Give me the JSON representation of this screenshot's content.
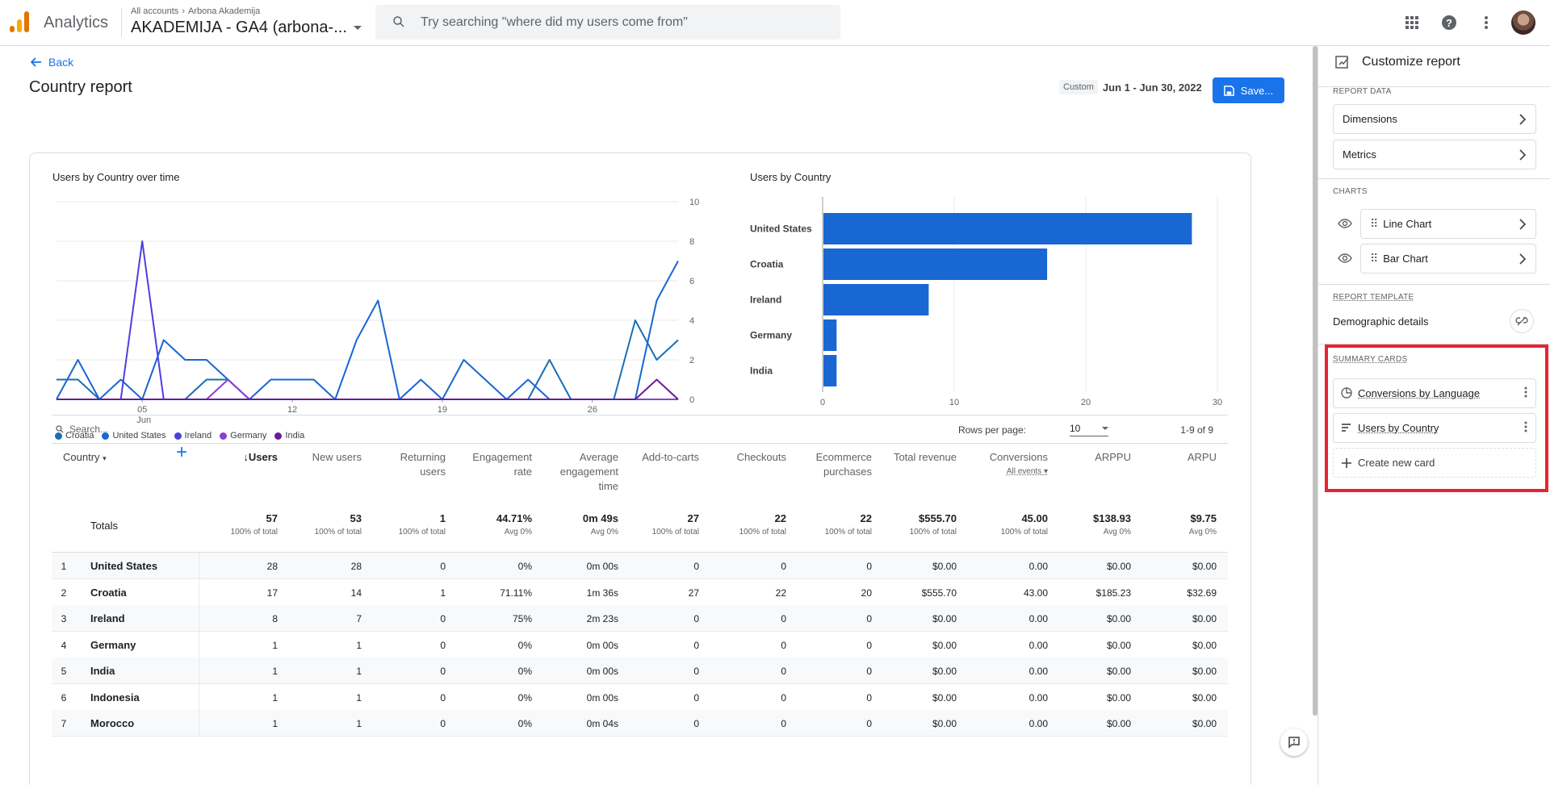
{
  "header": {
    "app_name": "Analytics",
    "breadcrumb": [
      "All accounts",
      "Arbona Akademija"
    ],
    "property_name": "AKADEMIJA - GA4 (arbona-...",
    "search_placeholder": "Try searching \"where did my users come from\""
  },
  "report": {
    "back_label": "Back",
    "title": "Country report",
    "date_chip": "Custom",
    "date_range": "Jun 1 - Jun 30, 2022",
    "save_label": "Save..."
  },
  "line_chart": {
    "title": "Users by Country over time",
    "y_ticks": [
      "10",
      "8",
      "6",
      "4",
      "2",
      "0"
    ],
    "x_ticks": [
      "05",
      "12",
      "19",
      "26"
    ],
    "x_month": "Jun",
    "legend": [
      {
        "name": "Croatia",
        "color": "#1a6fb5"
      },
      {
        "name": "United States",
        "color": "#1967d2"
      },
      {
        "name": "Ireland",
        "color": "#4b3fe0"
      },
      {
        "name": "Germany",
        "color": "#8e3fd0"
      },
      {
        "name": "India",
        "color": "#6a1b9a"
      }
    ]
  },
  "chart_data": [
    {
      "type": "line",
      "title": "Users by Country over time",
      "x": [
        "Jun 1",
        "Jun 2",
        "Jun 3",
        "Jun 4",
        "Jun 5",
        "Jun 6",
        "Jun 7",
        "Jun 8",
        "Jun 9",
        "Jun 10",
        "Jun 11",
        "Jun 12",
        "Jun 13",
        "Jun 14",
        "Jun 15",
        "Jun 16",
        "Jun 17",
        "Jun 18",
        "Jun 19",
        "Jun 20",
        "Jun 21",
        "Jun 22",
        "Jun 23",
        "Jun 24",
        "Jun 25",
        "Jun 26",
        "Jun 27",
        "Jun 28",
        "Jun 29",
        "Jun 30"
      ],
      "ylim": [
        0,
        10
      ],
      "series": [
        {
          "name": "Croatia",
          "values": [
            1,
            1,
            0,
            0,
            0,
            0,
            0,
            1,
            1,
            0,
            0,
            0,
            0,
            0,
            0,
            0,
            0,
            0,
            0,
            0,
            0,
            0,
            0,
            2,
            0,
            0,
            0,
            4,
            2,
            3
          ]
        },
        {
          "name": "United States",
          "values": [
            0,
            2,
            0,
            1,
            0,
            3,
            2,
            2,
            1,
            0,
            1,
            1,
            1,
            0,
            3,
            5,
            0,
            1,
            0,
            2,
            1,
            0,
            1,
            0,
            0,
            0,
            0,
            0,
            5,
            7
          ]
        },
        {
          "name": "Ireland",
          "values": [
            0,
            0,
            0,
            0,
            8,
            0,
            0,
            0,
            0,
            0,
            0,
            0,
            0,
            0,
            0,
            0,
            0,
            0,
            0,
            0,
            0,
            0,
            0,
            0,
            0,
            0,
            0,
            0,
            0,
            0
          ]
        },
        {
          "name": "Germany",
          "values": [
            0,
            0,
            0,
            0,
            0,
            0,
            0,
            0,
            1,
            0,
            0,
            0,
            0,
            0,
            0,
            0,
            0,
            0,
            0,
            0,
            0,
            0,
            0,
            0,
            0,
            0,
            0,
            0,
            0,
            0
          ]
        },
        {
          "name": "India",
          "values": [
            0,
            0,
            0,
            0,
            0,
            0,
            0,
            0,
            0,
            0,
            0,
            0,
            0,
            0,
            0,
            0,
            0,
            0,
            0,
            0,
            0,
            0,
            0,
            0,
            0,
            0,
            0,
            0,
            1,
            0
          ]
        }
      ]
    },
    {
      "type": "bar",
      "title": "Users by Country",
      "categories": [
        "United States",
        "Croatia",
        "Ireland",
        "Germany",
        "India"
      ],
      "values": [
        28,
        17,
        8,
        1,
        1
      ],
      "xlim": [
        0,
        30
      ],
      "x_ticks": [
        "0",
        "10",
        "20",
        "30"
      ]
    }
  ],
  "table": {
    "search_placeholder": "Search...",
    "rows_per_page_label": "Rows per page:",
    "rows_per_page": "10",
    "pager": "1-9 of 9",
    "dimension_header": "Country",
    "add_dimension": "+",
    "headers": [
      "↓Users",
      "New users",
      "Returning users",
      "Engagement rate",
      "Average engagement time",
      "Add-to-carts",
      "Checkouts",
      "Ecommerce purchases",
      "Total revenue",
      "Conversions",
      "ARPPU",
      "ARPU"
    ],
    "conversions_sub": "All events",
    "totals_label": "Totals",
    "totals": [
      {
        "v": "57",
        "s": "100% of total"
      },
      {
        "v": "53",
        "s": "100% of total"
      },
      {
        "v": "1",
        "s": "100% of total"
      },
      {
        "v": "44.71%",
        "s": "Avg 0%"
      },
      {
        "v": "0m 49s",
        "s": "Avg 0%"
      },
      {
        "v": "27",
        "s": "100% of total"
      },
      {
        "v": "22",
        "s": "100% of total"
      },
      {
        "v": "22",
        "s": "100% of total"
      },
      {
        "v": "$555.70",
        "s": "100% of total"
      },
      {
        "v": "45.00",
        "s": "100% of total"
      },
      {
        "v": "$138.93",
        "s": "Avg 0%"
      },
      {
        "v": "$9.75",
        "s": "Avg 0%"
      }
    ],
    "rows": [
      {
        "idx": "1",
        "country": "United States",
        "cells": [
          "28",
          "28",
          "0",
          "0%",
          "0m 00s",
          "0",
          "0",
          "0",
          "$0.00",
          "0.00",
          "$0.00",
          "$0.00"
        ]
      },
      {
        "idx": "2",
        "country": "Croatia",
        "cells": [
          "17",
          "14",
          "1",
          "71.11%",
          "1m 36s",
          "27",
          "22",
          "20",
          "$555.70",
          "43.00",
          "$185.23",
          "$32.69"
        ]
      },
      {
        "idx": "3",
        "country": "Ireland",
        "cells": [
          "8",
          "7",
          "0",
          "75%",
          "2m 23s",
          "0",
          "0",
          "0",
          "$0.00",
          "0.00",
          "$0.00",
          "$0.00"
        ]
      },
      {
        "idx": "4",
        "country": "Germany",
        "cells": [
          "1",
          "1",
          "0",
          "0%",
          "0m 00s",
          "0",
          "0",
          "0",
          "$0.00",
          "0.00",
          "$0.00",
          "$0.00"
        ]
      },
      {
        "idx": "5",
        "country": "India",
        "cells": [
          "1",
          "1",
          "0",
          "0%",
          "0m 00s",
          "0",
          "0",
          "0",
          "$0.00",
          "0.00",
          "$0.00",
          "$0.00"
        ]
      },
      {
        "idx": "6",
        "country": "Indonesia",
        "cells": [
          "1",
          "1",
          "0",
          "0%",
          "0m 00s",
          "0",
          "0",
          "0",
          "$0.00",
          "0.00",
          "$0.00",
          "$0.00"
        ]
      },
      {
        "idx": "7",
        "country": "Morocco",
        "cells": [
          "1",
          "1",
          "0",
          "0%",
          "0m 04s",
          "0",
          "0",
          "0",
          "$0.00",
          "0.00",
          "$0.00",
          "$0.00"
        ]
      }
    ]
  },
  "panel": {
    "title": "Customize report",
    "report_data_label": "REPORT DATA",
    "dimensions_label": "Dimensions",
    "metrics_label": "Metrics",
    "charts_label": "CHARTS",
    "line_chart_label": "Line Chart",
    "bar_chart_label": "Bar Chart",
    "report_template_label": "REPORT TEMPLATE",
    "template_name": "Demographic details",
    "summary_cards_label": "SUMMARY CARDS",
    "cards": [
      "Conversions by Language",
      "Users by Country"
    ],
    "create_card_label": "Create new card"
  }
}
